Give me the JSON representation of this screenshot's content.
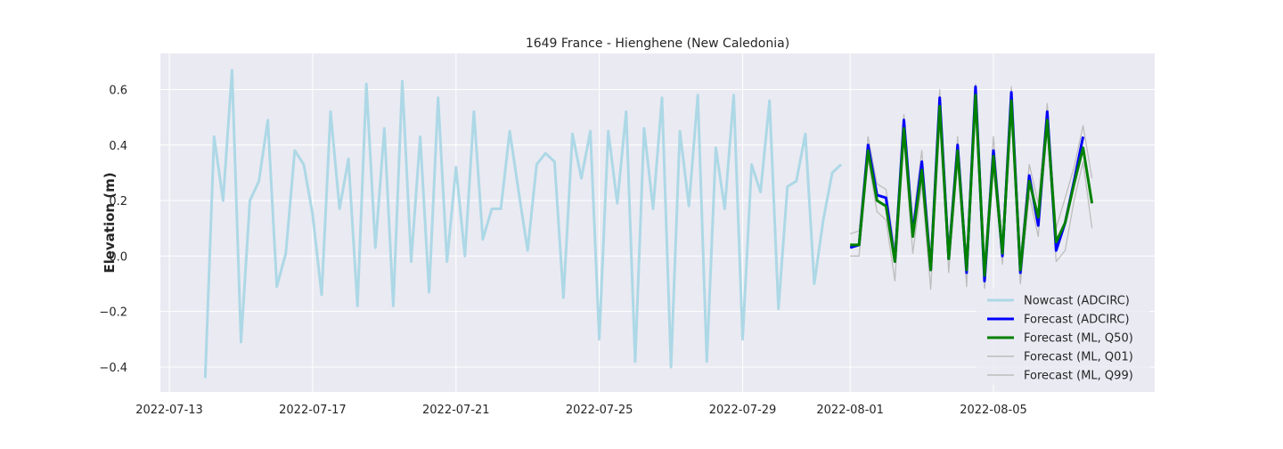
{
  "chart_data": {
    "type": "line",
    "title": "1649 France - Hienghene (New Caledonia)",
    "xlabel": "",
    "ylabel": "Elevation (m)",
    "xlim": [
      "2022-07-12T18:00",
      "2022-08-09T12:00"
    ],
    "ylim": [
      -0.49,
      0.73
    ],
    "x_ticks": [
      "2022-07-13",
      "2022-07-17",
      "2022-07-21",
      "2022-07-25",
      "2022-07-29",
      "2022-08-01",
      "2022-08-05"
    ],
    "y_ticks": [
      -0.4,
      -0.2,
      0.0,
      0.2,
      0.4,
      0.6
    ],
    "y_tick_labels": [
      "−0.4",
      "−0.2",
      "0.0",
      "0.2",
      "0.4",
      "0.6"
    ],
    "grid": true,
    "legend_position": "lower-right",
    "series": [
      {
        "name": "Nowcast (ADCIRC)",
        "color": "#add8e6",
        "x_start": "2022-07-14T00:00",
        "x_step_hours": 6,
        "values": [
          -0.44,
          0.43,
          0.2,
          0.67,
          -0.31,
          0.2,
          0.27,
          0.49,
          -0.11,
          0.01,
          0.38,
          0.33,
          0.15,
          -0.14,
          0.52,
          0.17,
          0.35,
          -0.18,
          0.62,
          0.03,
          0.46,
          -0.18,
          0.63,
          -0.02,
          0.43,
          -0.13,
          0.57,
          -0.02,
          0.32,
          0.0,
          0.52,
          0.06,
          0.17,
          0.17,
          0.45,
          0.23,
          0.02,
          0.33,
          0.37,
          0.34,
          -0.15,
          0.44,
          0.28,
          0.45,
          -0.3,
          0.45,
          0.19,
          0.52,
          -0.38,
          0.46,
          0.17,
          0.57,
          -0.4,
          0.45,
          0.18,
          0.58,
          -0.38,
          0.39,
          0.17,
          0.58,
          -0.3,
          0.33,
          0.23,
          0.56,
          -0.19,
          0.25,
          0.27,
          0.44,
          -0.1,
          0.13,
          0.3,
          0.33
        ]
      },
      {
        "name": "Forecast (ADCIRC)",
        "color": "#0000ff",
        "x_start": "2022-08-01T00:00",
        "x_step_hours": 6,
        "values": [
          0.03,
          0.04,
          0.4,
          0.22,
          0.21,
          -0.02,
          0.49,
          0.08,
          0.34,
          -0.05,
          0.57,
          -0.01,
          0.4,
          -0.06,
          0.61,
          -0.09,
          0.38,
          0.0,
          0.59,
          -0.06,
          0.29,
          0.11,
          0.52,
          0.02,
          0.12,
          0.27,
          0.43
        ]
      },
      {
        "name": "Forecast (ML, Q50)",
        "color": "#008000",
        "x_start": "2022-08-01T00:00",
        "x_step_hours": 6,
        "values": [
          0.04,
          0.04,
          0.38,
          0.2,
          0.18,
          -0.02,
          0.46,
          0.07,
          0.31,
          -0.05,
          0.54,
          -0.01,
          0.38,
          -0.05,
          0.58,
          -0.07,
          0.36,
          0.01,
          0.56,
          -0.05,
          0.27,
          0.14,
          0.49,
          0.05,
          0.12,
          0.26,
          0.39,
          0.19
        ]
      },
      {
        "name": "Forecast (ML, Q01)",
        "color": "#bdbdbd",
        "x_start": "2022-08-01T00:00",
        "x_step_hours": 6,
        "values": [
          0.0,
          0.0,
          0.35,
          0.16,
          0.13,
          -0.09,
          0.42,
          0.01,
          0.26,
          -0.12,
          0.49,
          -0.06,
          0.34,
          -0.11,
          0.54,
          -0.12,
          0.31,
          -0.03,
          0.52,
          -0.1,
          0.22,
          0.07,
          0.46,
          -0.02,
          0.02,
          0.2,
          0.34,
          0.1
        ]
      },
      {
        "name": "Forecast (ML, Q99)",
        "color": "#bdbdbd",
        "x_start": "2022-08-01T00:00",
        "x_step_hours": 6,
        "values": [
          0.08,
          0.09,
          0.43,
          0.26,
          0.24,
          0.02,
          0.51,
          0.12,
          0.38,
          -0.01,
          0.6,
          0.04,
          0.43,
          -0.01,
          0.62,
          -0.03,
          0.43,
          0.05,
          0.61,
          -0.01,
          0.33,
          0.19,
          0.55,
          0.1,
          0.21,
          0.32,
          0.47,
          0.28
        ]
      }
    ]
  }
}
